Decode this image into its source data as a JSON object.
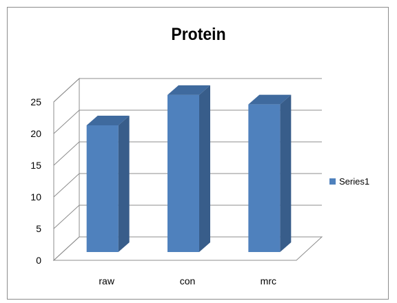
{
  "chart_data": {
    "type": "bar",
    "title": "Protein",
    "categories": [
      "raw",
      "con",
      "mrc"
    ],
    "series": [
      {
        "name": "Series1",
        "values": [
          20,
          24.8,
          23.3
        ],
        "color": "#4F81BD"
      }
    ],
    "ylim": [
      0,
      25
    ],
    "yticks": [
      0,
      5,
      10,
      15,
      20,
      25
    ],
    "grid": true,
    "three_d": true,
    "legend": "right"
  }
}
